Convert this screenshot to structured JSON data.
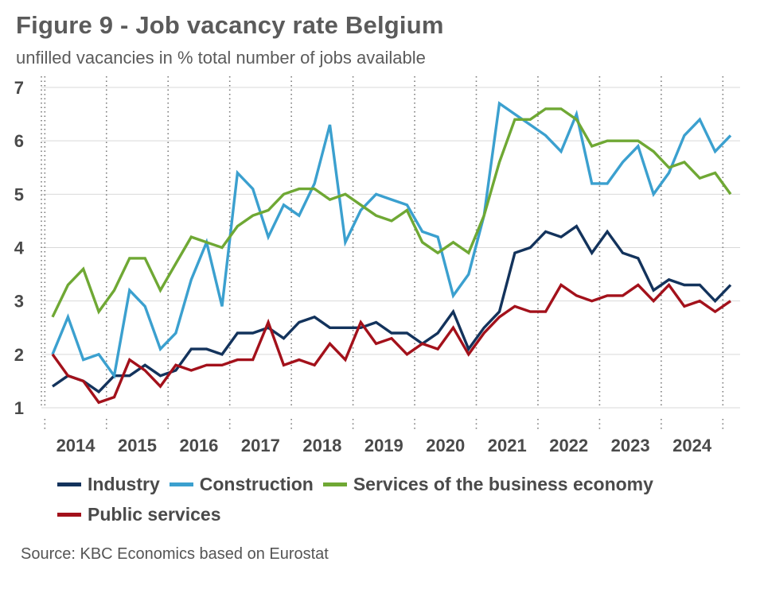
{
  "title": "Figure 9 - Job vacancy rate Belgium",
  "subtitle": "unfilled vacancies in % total number of jobs available",
  "source": "Source: KBC Economics based on Eurostat",
  "chart_data": {
    "type": "line",
    "title": "Figure 9 - Job vacancy rate Belgium",
    "subtitle": "unfilled vacancies in % total number of jobs available",
    "xlabel": "",
    "ylabel": "",
    "ylim": [
      1,
      7
    ],
    "yticks": [
      1,
      2,
      3,
      4,
      5,
      6,
      7
    ],
    "year_labels": [
      "2014",
      "2015",
      "2016",
      "2017",
      "2018",
      "2019",
      "2020",
      "2021",
      "2022",
      "2023",
      "2024"
    ],
    "points_per_year": 4,
    "grid": "horizontal solid, vertical dotted at year boundaries",
    "legend_position": "bottom",
    "series": [
      {
        "name": "Industry",
        "color": "#13335c",
        "values": [
          1.4,
          1.6,
          1.5,
          1.3,
          1.6,
          1.6,
          1.8,
          1.6,
          1.7,
          2.1,
          2.1,
          2.0,
          2.4,
          2.4,
          2.5,
          2.3,
          2.6,
          2.7,
          2.5,
          2.5,
          2.5,
          2.6,
          2.4,
          2.4,
          2.2,
          2.4,
          2.8,
          2.1,
          2.5,
          2.8,
          3.9,
          4.0,
          4.3,
          4.2,
          4.4,
          3.9,
          4.3,
          3.9,
          3.8,
          3.2,
          3.4,
          3.3,
          3.3,
          3.0,
          3.3
        ]
      },
      {
        "name": "Construction",
        "color": "#3ba0cf",
        "values": [
          2.0,
          2.7,
          1.9,
          2.0,
          1.6,
          3.2,
          2.9,
          2.1,
          2.4,
          3.4,
          4.1,
          2.9,
          5.4,
          5.1,
          4.2,
          4.8,
          4.6,
          5.2,
          6.3,
          4.1,
          4.7,
          5.0,
          4.9,
          4.8,
          4.3,
          4.2,
          3.1,
          3.5,
          4.6,
          6.7,
          6.5,
          6.3,
          6.1,
          5.8,
          6.5,
          5.2,
          5.2,
          5.6,
          5.9,
          5.0,
          5.4,
          6.1,
          6.4,
          5.8,
          6.1
        ]
      },
      {
        "name": "Services of the business economy",
        "color": "#6fa834",
        "values": [
          2.7,
          3.3,
          3.6,
          2.8,
          3.2,
          3.8,
          3.8,
          3.2,
          3.7,
          4.2,
          4.1,
          4.0,
          4.4,
          4.6,
          4.7,
          5.0,
          5.1,
          5.1,
          4.9,
          5.0,
          4.8,
          4.6,
          4.5,
          4.7,
          4.1,
          3.9,
          4.1,
          3.9,
          4.6,
          5.6,
          6.4,
          6.4,
          6.6,
          6.6,
          6.4,
          5.9,
          6.0,
          6.0,
          6.0,
          5.8,
          5.5,
          5.6,
          5.3,
          5.4,
          5.0
        ]
      },
      {
        "name": "Public services",
        "color": "#a3111b",
        "values": [
          2.0,
          1.6,
          1.5,
          1.1,
          1.2,
          1.9,
          1.7,
          1.4,
          1.8,
          1.7,
          1.8,
          1.8,
          1.9,
          1.9,
          2.6,
          1.8,
          1.9,
          1.8,
          2.2,
          1.9,
          2.6,
          2.2,
          2.3,
          2.0,
          2.2,
          2.1,
          2.5,
          2.0,
          2.4,
          2.7,
          2.9,
          2.8,
          2.8,
          3.3,
          3.1,
          3.0,
          3.1,
          3.1,
          3.3,
          3.0,
          3.3,
          2.9,
          3.0,
          2.8,
          3.0
        ]
      }
    ]
  }
}
